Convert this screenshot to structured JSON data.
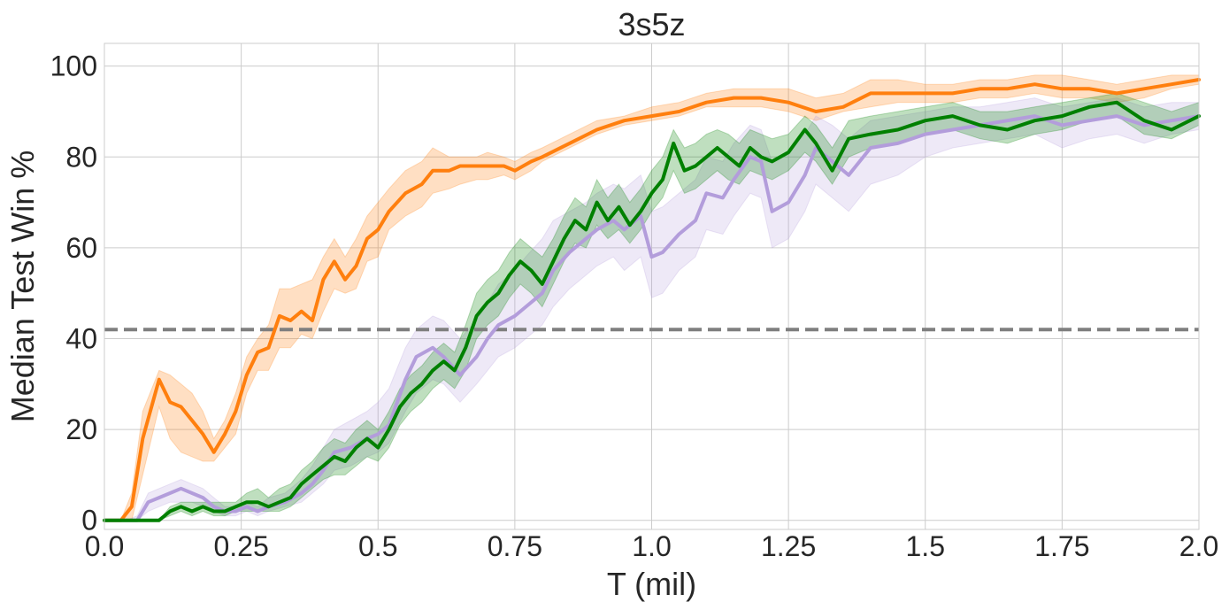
{
  "chart_data": {
    "type": "line",
    "title": "3s5z",
    "xlabel": "T (mil)",
    "ylabel": "Median Test Win %",
    "xlim": [
      0,
      2.0
    ],
    "ylim": [
      -2,
      105
    ],
    "xticks": [
      0.0,
      0.25,
      0.5,
      0.75,
      1.0,
      1.25,
      1.5,
      1.75,
      2.0
    ],
    "xtick_labels": [
      "0.0",
      "0.25",
      "0.5",
      "0.75",
      "1.0",
      "1.25",
      "1.5",
      "1.75",
      "2.0"
    ],
    "yticks": [
      0,
      20,
      40,
      60,
      80,
      100
    ],
    "ytick_labels": [
      "0",
      "20",
      "40",
      "60",
      "80",
      "100"
    ],
    "grid": true,
    "reference_line": {
      "y": 42,
      "color": "#7f7f7f",
      "style": "dashed"
    },
    "series": [
      {
        "color": "#ff7f0e",
        "x": [
          0.0,
          0.03,
          0.05,
          0.07,
          0.1,
          0.12,
          0.14,
          0.16,
          0.18,
          0.2,
          0.22,
          0.24,
          0.26,
          0.28,
          0.3,
          0.32,
          0.34,
          0.36,
          0.38,
          0.4,
          0.42,
          0.44,
          0.46,
          0.48,
          0.5,
          0.52,
          0.55,
          0.58,
          0.6,
          0.63,
          0.65,
          0.68,
          0.7,
          0.73,
          0.75,
          0.78,
          0.8,
          0.85,
          0.9,
          0.95,
          1.0,
          1.05,
          1.1,
          1.15,
          1.2,
          1.25,
          1.3,
          1.35,
          1.4,
          1.45,
          1.5,
          1.55,
          1.6,
          1.65,
          1.7,
          1.75,
          1.8,
          1.85,
          1.9,
          1.95,
          2.0
        ],
        "y": [
          0,
          0,
          3,
          18,
          31,
          26,
          25,
          22,
          19,
          15,
          19,
          24,
          32,
          37,
          38,
          45,
          44,
          46,
          44,
          53,
          57,
          53,
          56,
          62,
          64,
          68,
          72,
          74,
          77,
          77,
          78,
          78,
          78,
          78,
          77,
          79,
          80,
          83,
          86,
          88,
          89,
          90,
          92,
          93,
          93,
          92,
          90,
          91,
          94,
          94,
          94,
          94,
          95,
          95,
          96,
          95,
          95,
          94,
          95,
          96,
          97
        ],
        "band_low": [
          0,
          0,
          0,
          10,
          25,
          18,
          15,
          14,
          13,
          13,
          16,
          19,
          28,
          33,
          33,
          38,
          38,
          41,
          40,
          46,
          51,
          50,
          51,
          57,
          58,
          64,
          67,
          69,
          72,
          73,
          74,
          75,
          75,
          76,
          75,
          77,
          79,
          82,
          85,
          87,
          88,
          89,
          91,
          91,
          91,
          90,
          88,
          90,
          91,
          92,
          92,
          92,
          93,
          93,
          94,
          93,
          93,
          92,
          93,
          95,
          96
        ],
        "band_high": [
          0,
          0,
          6,
          24,
          33,
          32,
          30,
          28,
          24,
          18,
          22,
          28,
          36,
          40,
          43,
          51,
          51,
          52,
          53,
          58,
          62,
          58,
          62,
          67,
          70,
          73,
          77,
          79,
          82,
          80,
          80,
          80,
          81,
          80,
          79,
          81,
          82,
          85,
          88,
          89,
          91,
          92,
          94,
          95,
          95,
          95,
          93,
          94,
          97,
          97,
          96,
          96,
          97,
          97,
          98,
          98,
          97,
          96,
          97,
          98,
          98
        ]
      },
      {
        "color": "#b39ddb",
        "x": [
          0.0,
          0.04,
          0.06,
          0.08,
          0.1,
          0.12,
          0.14,
          0.16,
          0.18,
          0.2,
          0.22,
          0.24,
          0.26,
          0.28,
          0.3,
          0.33,
          0.36,
          0.38,
          0.4,
          0.42,
          0.45,
          0.48,
          0.5,
          0.52,
          0.55,
          0.57,
          0.6,
          0.62,
          0.65,
          0.68,
          0.7,
          0.72,
          0.75,
          0.77,
          0.8,
          0.82,
          0.85,
          0.88,
          0.9,
          0.93,
          0.95,
          0.98,
          1.0,
          1.02,
          1.05,
          1.08,
          1.1,
          1.13,
          1.15,
          1.18,
          1.2,
          1.22,
          1.25,
          1.28,
          1.3,
          1.33,
          1.36,
          1.4,
          1.45,
          1.5,
          1.55,
          1.6,
          1.65,
          1.7,
          1.75,
          1.8,
          1.85,
          1.9,
          1.95,
          2.0
        ],
        "y": [
          0,
          0,
          0,
          4,
          5,
          6,
          7,
          6,
          5,
          3,
          2,
          2,
          3,
          2,
          3,
          4,
          6,
          8,
          11,
          15,
          16,
          18,
          19,
          21,
          31,
          36,
          38,
          36,
          32,
          36,
          40,
          43,
          45,
          47,
          50,
          55,
          59,
          62,
          64,
          66,
          64,
          67,
          58,
          59,
          63,
          66,
          72,
          71,
          75,
          80,
          79,
          68,
          70,
          76,
          82,
          79,
          76,
          82,
          83,
          85,
          86,
          87,
          88,
          89,
          87,
          88,
          89,
          87,
          88,
          89
        ],
        "band_low": [
          0,
          0,
          0,
          2,
          3,
          4,
          4,
          4,
          3,
          2,
          1,
          1,
          2,
          1,
          2,
          3,
          4,
          6,
          8,
          11,
          12,
          14,
          15,
          17,
          24,
          28,
          31,
          30,
          26,
          30,
          33,
          36,
          38,
          40,
          43,
          47,
          51,
          54,
          56,
          58,
          55,
          58,
          49,
          50,
          55,
          58,
          64,
          63,
          67,
          72,
          71,
          60,
          62,
          68,
          74,
          71,
          68,
          74,
          76,
          80,
          82,
          83,
          84,
          85,
          82,
          84,
          85,
          83,
          85,
          86
        ],
        "band_high": [
          0,
          0,
          1,
          6,
          7,
          8,
          9,
          8,
          7,
          5,
          3,
          3,
          4,
          3,
          5,
          6,
          9,
          12,
          16,
          20,
          22,
          24,
          26,
          29,
          38,
          42,
          45,
          44,
          40,
          44,
          48,
          52,
          55,
          58,
          62,
          66,
          68,
          70,
          72,
          74,
          73,
          76,
          68,
          69,
          72,
          75,
          80,
          79,
          83,
          87,
          86,
          79,
          81,
          85,
          89,
          87,
          84,
          88,
          89,
          90,
          91,
          91,
          92,
          93,
          91,
          92,
          93,
          91,
          92,
          92
        ]
      },
      {
        "color": "#008000",
        "x": [
          0.0,
          0.05,
          0.1,
          0.12,
          0.14,
          0.16,
          0.18,
          0.2,
          0.22,
          0.24,
          0.26,
          0.28,
          0.3,
          0.32,
          0.34,
          0.36,
          0.38,
          0.4,
          0.42,
          0.44,
          0.46,
          0.48,
          0.5,
          0.52,
          0.54,
          0.56,
          0.58,
          0.6,
          0.62,
          0.64,
          0.66,
          0.68,
          0.7,
          0.72,
          0.74,
          0.76,
          0.78,
          0.8,
          0.82,
          0.84,
          0.86,
          0.88,
          0.9,
          0.92,
          0.94,
          0.96,
          0.98,
          1.0,
          1.02,
          1.04,
          1.06,
          1.08,
          1.1,
          1.12,
          1.14,
          1.16,
          1.18,
          1.2,
          1.22,
          1.25,
          1.28,
          1.3,
          1.33,
          1.36,
          1.4,
          1.45,
          1.5,
          1.55,
          1.6,
          1.65,
          1.7,
          1.75,
          1.8,
          1.85,
          1.9,
          1.95,
          2.0
        ],
        "y": [
          0,
          0,
          0,
          2,
          3,
          2,
          3,
          2,
          2,
          3,
          4,
          4,
          3,
          4,
          5,
          8,
          10,
          12,
          14,
          13,
          16,
          18,
          16,
          20,
          25,
          28,
          30,
          33,
          35,
          33,
          38,
          45,
          48,
          50,
          54,
          57,
          55,
          52,
          57,
          62,
          66,
          64,
          70,
          66,
          69,
          65,
          68,
          72,
          75,
          83,
          77,
          78,
          80,
          82,
          80,
          78,
          82,
          80,
          79,
          81,
          86,
          83,
          77,
          84,
          85,
          86,
          88,
          89,
          87,
          86,
          88,
          89,
          91,
          92,
          88,
          86,
          89
        ],
        "band_low": [
          0,
          0,
          0,
          1,
          2,
          1,
          2,
          1,
          1,
          2,
          2,
          2,
          2,
          2,
          3,
          5,
          7,
          9,
          10,
          10,
          12,
          14,
          13,
          16,
          21,
          24,
          26,
          29,
          31,
          29,
          33,
          40,
          43,
          45,
          49,
          52,
          50,
          47,
          52,
          57,
          61,
          60,
          65,
          62,
          64,
          61,
          64,
          68,
          71,
          77,
          72,
          73,
          75,
          77,
          75,
          74,
          77,
          76,
          75,
          77,
          81,
          79,
          74,
          80,
          82,
          83,
          85,
          86,
          84,
          83,
          85,
          86,
          88,
          89,
          85,
          84,
          87
        ],
        "band_high": [
          0,
          0,
          0,
          3,
          4,
          4,
          4,
          4,
          4,
          4,
          6,
          7,
          5,
          7,
          8,
          11,
          13,
          16,
          18,
          17,
          20,
          22,
          20,
          24,
          29,
          32,
          34,
          37,
          39,
          37,
          43,
          50,
          53,
          55,
          59,
          62,
          60,
          58,
          62,
          67,
          71,
          69,
          75,
          71,
          74,
          70,
          73,
          77,
          80,
          86,
          82,
          83,
          85,
          86,
          85,
          83,
          86,
          85,
          84,
          85,
          89,
          87,
          82,
          88,
          89,
          90,
          91,
          92,
          90,
          90,
          91,
          92,
          93,
          94,
          92,
          90,
          92
        ]
      }
    ]
  }
}
